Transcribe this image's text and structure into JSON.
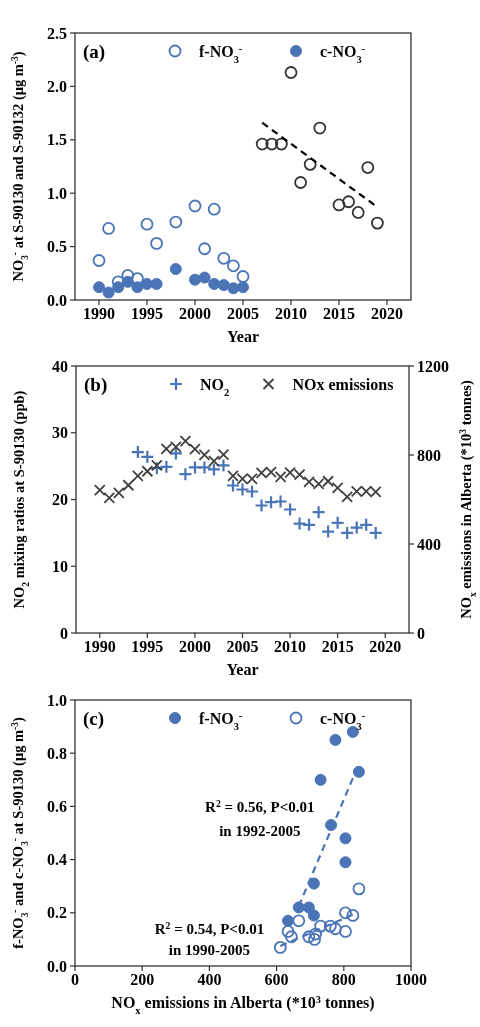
{
  "chart_data": [
    {
      "type": "scatter",
      "xlabel": "Year",
      "ylabel": "NO$_{3}$$^{-}$ at S-90130 and S-90132 (μg m$^{-3}$)",
      "annotations": [
        "(a)"
      ],
      "xlim": [
        1987.5,
        2022.5
      ],
      "xticks": [
        1990,
        1995,
        2000,
        2005,
        2010,
        2015,
        2020
      ],
      "ylim": [
        0,
        2.5
      ],
      "yticks": [
        {
          "value": 0,
          "label": "0.0"
        },
        0.5,
        {
          "value": 1,
          "label": "1.0"
        },
        1.5,
        {
          "value": 2,
          "label": "2.0"
        },
        2.5
      ],
      "legend": "top",
      "grid": false,
      "series": [
        {
          "name": "f-NO$_{3}$$^{-}$",
          "color": "#4a74b6",
          "marker": "circle",
          "x": [
            1990,
            1991,
            1992,
            1993,
            1994,
            1995,
            1996,
            1998,
            2000,
            2001,
            2002,
            2003,
            2004,
            2005
          ],
          "values": [
            0.37,
            0.67,
            0.17,
            0.23,
            0.2,
            0.71,
            0.53,
            0.73,
            0.88,
            0.48,
            0.85,
            0.39,
            0.32,
            0.22
          ]
        },
        {
          "name": "c-NO$_{3}$$^{-}$",
          "color": "#4a74b6",
          "marker": "circle",
          "x": [
            1990,
            1991,
            1992,
            1993,
            1994,
            1995,
            1996,
            1998,
            2000,
            2001,
            2002,
            2003,
            2004,
            2005
          ],
          "values": [
            0.12,
            0.07,
            0.12,
            0.17,
            0.12,
            0.15,
            0.15,
            0.29,
            0.19,
            0.21,
            0.15,
            0.14,
            0.11,
            0.12
          ]
        },
        {
          "color": "#333333",
          "marker": "circle",
          "x": [
            2007,
            2008,
            2009,
            2010,
            2011,
            2012,
            2013,
            2015,
            2016,
            2017,
            2018,
            2019
          ],
          "values": [
            1.46,
            1.46,
            1.46,
            2.13,
            1.1,
            1.27,
            1.61,
            0.89,
            0.92,
            0.82,
            1.24,
            0.72
          ]
        },
        {
          "type": "line",
          "color": "#000000",
          "line_style": "dashed",
          "x": [
            2007,
            2019
          ],
          "values": [
            1.66,
            0.87
          ]
        }
      ]
    },
    {
      "type": "scatter",
      "xlabel": "Year",
      "ylabel": "NO$_{2}$ mixing ratios at S-90130 (ppb)",
      "y2label": "NO$_{x}$ emissions in Alberta (*10$^{3}$ tonnes)",
      "annotations": [
        "(b)"
      ],
      "xlim": [
        1987.5,
        2022.5
      ],
      "xticks": [
        1990,
        1995,
        2000,
        2005,
        2010,
        2015,
        2020
      ],
      "ylim": [
        0,
        40
      ],
      "yticks": [
        0,
        10,
        20,
        30,
        40
      ],
      "y2lim": [
        0,
        1200
      ],
      "y2ticks": [
        0,
        400,
        800,
        1200
      ],
      "legend": "top",
      "grid": false,
      "series": [
        {
          "name": "NO$_{2}$",
          "color": "#4a74b6",
          "marker": "cross",
          "x": [
            1994,
            1995,
            1996,
            1997,
            1998,
            1999,
            2000,
            2001,
            2002,
            2003,
            2004,
            2005,
            2006,
            2007,
            2008,
            2009,
            2010,
            2011,
            2012,
            2013,
            2014,
            2015,
            2016,
            2017,
            2018,
            2019
          ],
          "values": [
            27.1,
            26.4,
            24.7,
            24.9,
            26.9,
            23.8,
            24.8,
            24.8,
            24.5,
            25.1,
            22.1,
            21.5,
            21.2,
            19.1,
            19.6,
            19.7,
            18.5,
            16.4,
            16.2,
            18.1,
            15.2,
            16.5,
            15.0,
            15.8,
            16.2,
            15.0
          ]
        },
        {
          "name": "NOx emissions",
          "color": "#404040",
          "marker": "cross",
          "axis": "y2",
          "x": [
            1990,
            1991,
            1992,
            1993,
            1994,
            1995,
            1996,
            1997,
            1998,
            1999,
            2000,
            2001,
            2002,
            2003,
            2004,
            2005,
            2006,
            2007,
            2008,
            2009,
            2010,
            2011,
            2012,
            2013,
            2014,
            2015,
            2016,
            2017,
            2018,
            2019
          ],
          "values": [
            642,
            607,
            630,
            664,
            706,
            727,
            753,
            828,
            837,
            862,
            826,
            801,
            772,
            802,
            706,
            693,
            693,
            720,
            723,
            702,
            721,
            712,
            679,
            670,
            682,
            652,
            612,
            637,
            637,
            634
          ]
        }
      ]
    },
    {
      "type": "scatter",
      "xlabel": "NO$_{x}$ emissions in Alberta (*10$^{3}$ tonnes)",
      "ylabel": "f-NO$_{3}$$^{-}$ and c-NO$_{3}$$^{-}$ at S-90130 (μg m$^{-3}$)",
      "xlim": [
        0,
        1000
      ],
      "xticks": [
        0,
        200,
        400,
        600,
        800,
        1000
      ],
      "ylim": [
        0,
        1.0
      ],
      "yticks": [
        {
          "value": 0,
          "label": "0.0"
        },
        0.2,
        0.4,
        0.6,
        0.8,
        {
          "value": 1,
          "label": "1.0"
        }
      ],
      "legend": "top",
      "grid": false,
      "annotations": [
        "(c)",
        "R$^{2}$ = 0.56, P<0.01",
        "in 1992-2005",
        "R$^{2}$ = 0.54, P<0.01",
        "in 1990-2005"
      ],
      "series": [
        {
          "name": "f-NO$_{3}$$^{-}$",
          "color": "#4a74b6",
          "marker": "circle",
          "x": [
            634,
            666,
            696,
            711,
            711,
            731,
            762,
            775,
            805,
            805,
            827,
            845
          ],
          "values": [
            0.17,
            0.22,
            0.22,
            0.19,
            0.31,
            0.7,
            0.53,
            0.85,
            0.48,
            0.39,
            0.88,
            0.73
          ]
        },
        {
          "name": "c-NO$_{3}$$^{-}$",
          "color": "#4a74b6",
          "marker": "circle",
          "x": [
            611,
            634,
            644,
            666,
            696,
            713,
            716,
            731,
            760,
            775,
            805,
            805,
            827,
            845
          ],
          "values": [
            0.07,
            0.13,
            0.11,
            0.17,
            0.11,
            0.1,
            0.12,
            0.15,
            0.15,
            0.14,
            0.13,
            0.2,
            0.19,
            0.29
          ]
        },
        {
          "type": "line",
          "color": "#4a74b6",
          "line_style": "dashed",
          "x": [
            666,
            845
          ],
          "values": [
            0.225,
            0.76
          ]
        },
        {
          "type": "line",
          "color": "#4a74b6",
          "line_style": "dashed",
          "x": [
            611,
            830
          ],
          "values": [
            0.075,
            0.195
          ]
        }
      ]
    }
  ]
}
